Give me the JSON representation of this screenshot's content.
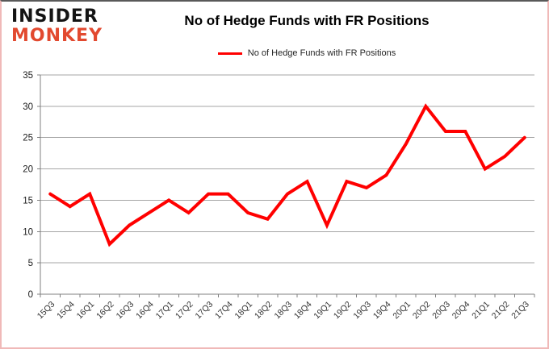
{
  "branding": {
    "logo_line1": "INSIDER",
    "logo_line2": "MONKEY",
    "logo_color2": "#e2492f",
    "logo_color1": "#141414"
  },
  "title": "No of Hedge Funds with FR Positions",
  "legend": {
    "label": "No of Hedge Funds with FR Positions",
    "line_color": "#ff0000"
  },
  "chart_data": {
    "type": "line",
    "title": "No of Hedge Funds with FR Positions",
    "categories": [
      "15Q3",
      "15Q4",
      "16Q1",
      "16Q2",
      "16Q3",
      "16Q4",
      "17Q1",
      "17Q2",
      "17Q3",
      "17Q4",
      "18Q1",
      "18Q2",
      "18Q3",
      "18Q4",
      "19Q1",
      "19Q2",
      "19Q3",
      "19Q4",
      "20Q1",
      "20Q2",
      "20Q3",
      "20Q4",
      "21Q1",
      "21Q2",
      "21Q3"
    ],
    "series": [
      {
        "name": "No of Hedge Funds with FR Positions",
        "color": "#ff0000",
        "values": [
          16,
          14,
          16,
          8,
          11,
          13,
          15,
          13,
          16,
          16,
          13,
          12,
          16,
          18,
          11,
          18,
          17,
          19,
          24,
          30,
          26,
          26,
          20,
          22,
          25
        ]
      }
    ],
    "xlabel": "",
    "ylabel": "",
    "ylim": [
      0,
      35
    ],
    "yticks": [
      0,
      5,
      10,
      15,
      20,
      25,
      30,
      35
    ],
    "grid": true,
    "legend_position": "top",
    "grid_color": "#a6a6a6",
    "axis_color": "#808080",
    "ytick_label_color": "#1a1a1a",
    "xtick_label_color": "#333333"
  }
}
